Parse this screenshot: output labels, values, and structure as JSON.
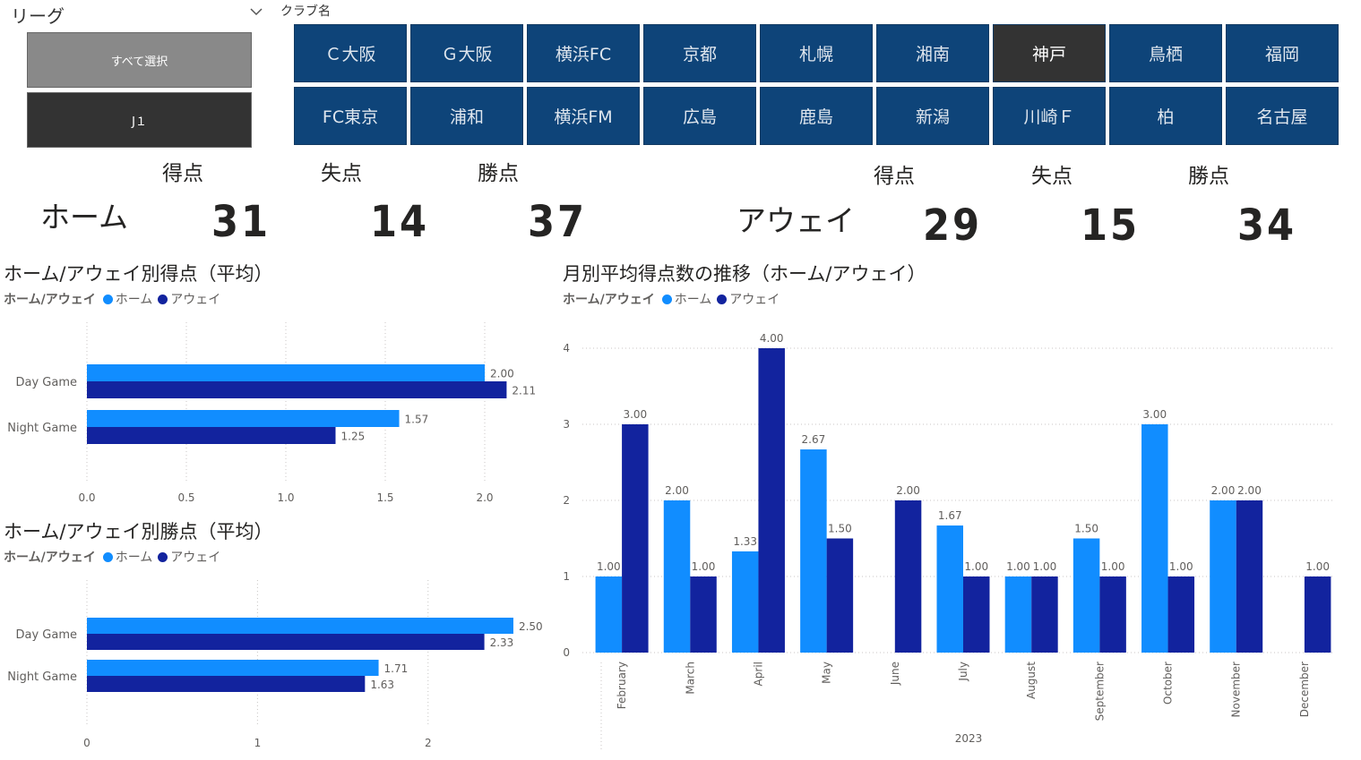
{
  "colors": {
    "home": "#118dff",
    "away": "#12239e",
    "club_bg": "#0e4479",
    "club_selected": "#333333"
  },
  "league_slicer": {
    "label": "リーグ",
    "select_all": "すべて選択",
    "option": "J１"
  },
  "club_slicer": {
    "label": "クラブ名",
    "clubs": [
      "Ｃ大阪",
      "Ｇ大阪",
      "横浜FC",
      "京都",
      "札幌",
      "湘南",
      "神戸",
      "鳥栖",
      "福岡",
      "FC東京",
      "浦和",
      "横浜FM",
      "広島",
      "鹿島",
      "新潟",
      "川崎Ｆ",
      "柏",
      "名古屋"
    ],
    "selected": "神戸"
  },
  "kpi": {
    "home": {
      "label": "ホーム",
      "goals_label": "得点",
      "conceded_label": "失点",
      "points_label": "勝点",
      "goals": "31",
      "conceded": "14",
      "points": "37"
    },
    "away": {
      "label": "アウェイ",
      "goals_label": "得点",
      "conceded_label": "失点",
      "points_label": "勝点",
      "goals": "29",
      "conceded": "15",
      "points": "34"
    }
  },
  "legend": {
    "title": "ホーム/アウェイ",
    "home": "ホーム",
    "away": "アウェイ"
  },
  "chart_data": [
    {
      "type": "bar",
      "orientation": "horizontal",
      "title": "ホーム/アウェイ別得点（平均）",
      "categories": [
        "Day Game",
        "Night Game"
      ],
      "series": [
        {
          "name": "ホーム",
          "values": [
            2.0,
            1.57
          ],
          "labels": [
            "2.00",
            "1.57"
          ]
        },
        {
          "name": "アウェイ",
          "values": [
            2.11,
            1.25
          ],
          "labels": [
            "2.11",
            "1.25"
          ]
        }
      ],
      "xlim": [
        0,
        2.5
      ],
      "ticks": [
        0.0,
        0.5,
        1.0,
        1.5,
        2.0
      ],
      "tick_labels": [
        "0.0",
        "0.5",
        "1.0",
        "1.5",
        "2.0"
      ],
      "grid": true,
      "legend": "top-left"
    },
    {
      "type": "bar",
      "orientation": "horizontal",
      "title": "ホーム/アウェイ別勝点（平均）",
      "categories": [
        "Day Game",
        "Night Game"
      ],
      "series": [
        {
          "name": "ホーム",
          "values": [
            2.5,
            1.71
          ],
          "labels": [
            "2.50",
            "1.71"
          ]
        },
        {
          "name": "アウェイ",
          "values": [
            2.33,
            1.63
          ],
          "labels": [
            "2.33",
            "1.63"
          ]
        }
      ],
      "xlim": [
        0,
        2.6
      ],
      "ticks": [
        0,
        1,
        2
      ],
      "tick_labels": [
        "0",
        "1",
        "2"
      ],
      "grid": true,
      "legend": "top-left"
    },
    {
      "type": "bar",
      "orientation": "vertical",
      "title": "月別平均得点数の推移（ホーム/アウェイ）",
      "categories": [
        "February",
        "March",
        "April",
        "May",
        "June",
        "July",
        "August",
        "September",
        "October",
        "November",
        "December"
      ],
      "xlabel": "2023",
      "series": [
        {
          "name": "ホーム",
          "values": [
            1.0,
            2.0,
            1.33,
            2.67,
            null,
            1.67,
            1.0,
            1.5,
            3.0,
            2.0,
            null
          ],
          "labels": [
            "1.00",
            "2.00",
            "1.33",
            "2.67",
            "",
            "1.67",
            "1.00",
            "1.50",
            "3.00",
            "2.00",
            ""
          ]
        },
        {
          "name": "アウェイ",
          "values": [
            3.0,
            1.0,
            4.0,
            1.5,
            2.0,
            1.0,
            1.0,
            1.0,
            1.0,
            2.0,
            1.0
          ],
          "labels": [
            "3.00",
            "1.00",
            "4.00",
            "1.50",
            "2.00",
            "1.00",
            "1.00",
            "1.00",
            "1.00",
            "2.00",
            "1.00"
          ]
        }
      ],
      "ylim": [
        0,
        4
      ],
      "ticks": [
        0,
        1,
        2,
        3,
        4
      ],
      "tick_labels": [
        "0",
        "1",
        "2",
        "3",
        "4"
      ],
      "grid": true,
      "legend": "top-left"
    }
  ]
}
